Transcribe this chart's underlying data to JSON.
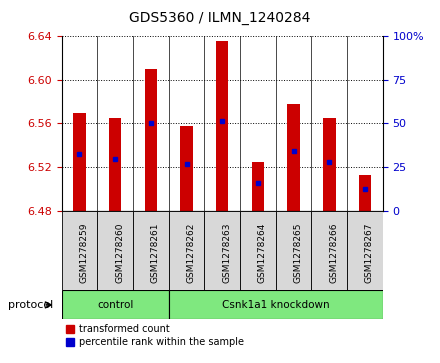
{
  "title": "GDS5360 / ILMN_1240284",
  "samples": [
    "GSM1278259",
    "GSM1278260",
    "GSM1278261",
    "GSM1278262",
    "GSM1278263",
    "GSM1278264",
    "GSM1278265",
    "GSM1278266",
    "GSM1278267"
  ],
  "bar_tops": [
    6.57,
    6.565,
    6.61,
    6.558,
    6.636,
    6.525,
    6.578,
    6.565,
    6.513
  ],
  "bar_bottoms": [
    6.48,
    6.48,
    6.48,
    6.48,
    6.48,
    6.48,
    6.48,
    6.48,
    6.48
  ],
  "blue_dot_values": [
    6.532,
    6.527,
    6.56,
    6.523,
    6.562,
    6.505,
    6.535,
    6.525,
    6.5
  ],
  "ylim_left": [
    6.48,
    6.64
  ],
  "ylim_right": [
    0,
    100
  ],
  "yticks_left": [
    6.48,
    6.52,
    6.56,
    6.6,
    6.64
  ],
  "yticks_right": [
    0,
    25,
    50,
    75,
    100
  ],
  "bar_color": "#cc0000",
  "dot_color": "#0000cc",
  "protocol_label": "protocol",
  "legend_bar_label": "transformed count",
  "legend_dot_label": "percentile rank within the sample",
  "tick_label_color_left": "#cc0000",
  "tick_label_color_right": "#0000cc",
  "sample_box_color": "#d8d8d8",
  "group_box_color": "#7fe87f",
  "bar_width": 0.35,
  "groups": [
    {
      "label": "control",
      "start": 0,
      "end": 2
    },
    {
      "label": "Csnk1a1 knockdown",
      "start": 3,
      "end": 8
    }
  ]
}
